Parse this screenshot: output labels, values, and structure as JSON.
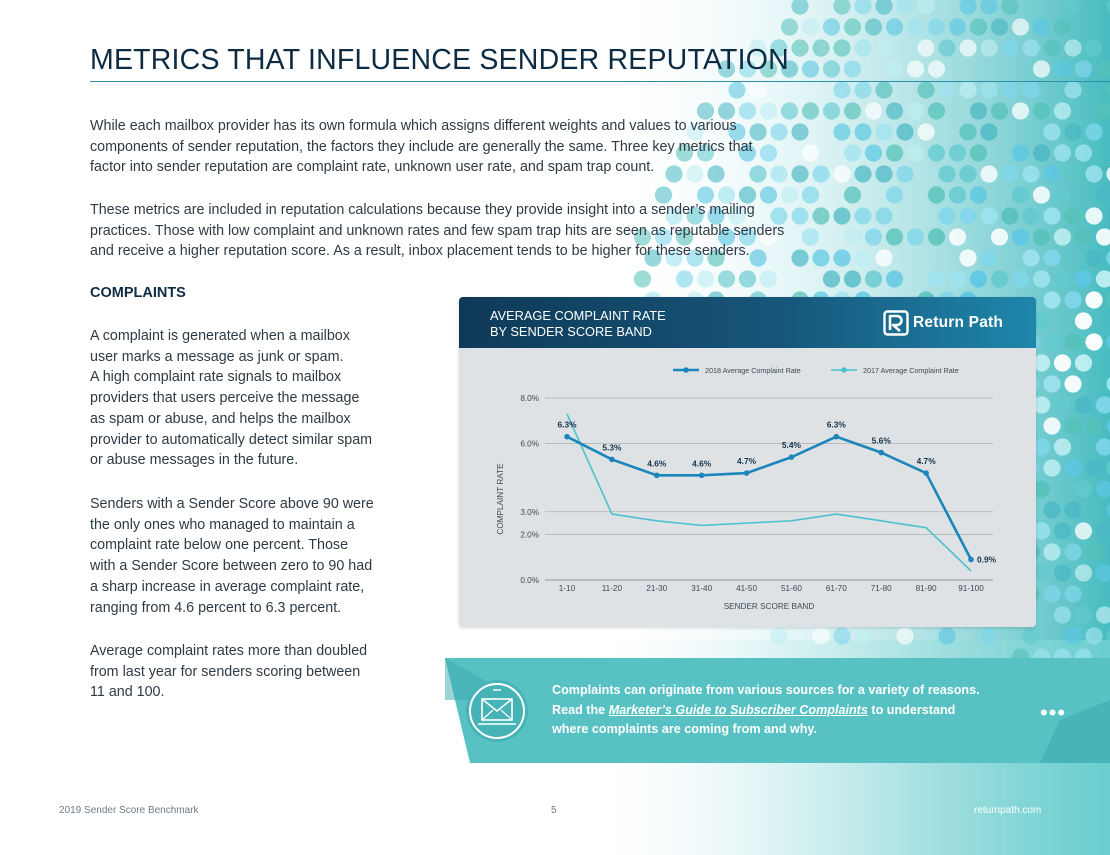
{
  "page": {
    "title": "METRICS THAT INFLUENCE SENDER REPUTATION",
    "intro": [
      [
        "While each mailbox provider has its own formula which assigns different weights and values to various",
        "components of sender reputation, the factors they include are generally the same. Three key metrics that",
        "factor into sender reputation are complaint rate, unknown user rate, and spam trap count."
      ],
      [
        "These metrics are included in reputation calculations because they provide insight into a sender’s mailing",
        "practices. Those with low complaint and unknown rates and few spam trap hits are seen as reputable senders",
        "and receive a higher reputation score. As a result, inbox placement tends to be higher for these senders."
      ]
    ],
    "section_heading": "COMPLAINTS",
    "left_paragraphs": [
      [
        "A complaint is generated when a mailbox",
        "user marks a message as junk or spam.",
        "A high complaint rate signals to mailbox",
        "providers that users perceive the message",
        "as spam or abuse, and helps the mailbox",
        "provider to automatically detect similar spam",
        "or abuse messages in the future."
      ],
      [
        "Senders with a Sender Score above 90 were",
        "the only ones who managed to maintain a",
        "complaint rate below one percent. Those",
        "with a Sender Score between zero to 90 had",
        "a sharp increase in average complaint rate,",
        "ranging from 4.6 percent to 6.3 percent."
      ],
      [
        "Average complaint rates more than doubled",
        "from last year for senders scoring between",
        "11 and 100."
      ]
    ]
  },
  "card": {
    "title_lines": [
      "AVERAGE COMPLAINT RATE",
      "BY SENDER SCORE BAND"
    ],
    "logo_text": "Return Path",
    "logo_icon": "return-path-logo-icon"
  },
  "chart_data": {
    "type": "line",
    "title": "AVERAGE COMPLAINT RATE BY SENDER SCORE BAND",
    "categories": [
      "1-10",
      "11-20",
      "21-30",
      "31-40",
      "41-50",
      "51-60",
      "61-70",
      "71-80",
      "81-90",
      "91-100"
    ],
    "series": [
      {
        "name": "2018 Average Complaint Rate",
        "color": "#1a86bb",
        "values": [
          6.3,
          5.3,
          4.6,
          4.6,
          4.7,
          5.4,
          6.3,
          5.6,
          4.7,
          0.9
        ],
        "labels": [
          "6.3%",
          "5.3%",
          "4.6%",
          "4.6%",
          "4.7%",
          "5.4%",
          "6.3%",
          "5.6%",
          "4.7%",
          "0.9%"
        ]
      },
      {
        "name": "2017 Average Complaint Rate",
        "color": "#4cc1cf",
        "values": [
          7.3,
          2.9,
          2.6,
          2.4,
          2.5,
          2.6,
          2.9,
          2.6,
          2.3,
          0.4
        ],
        "labels": []
      }
    ],
    "y_ticks": [
      0,
      2,
      3,
      6,
      8
    ],
    "y_tick_labels": [
      "0.0%",
      "2.0%",
      "3.0%",
      "6.0%",
      "8.0%"
    ],
    "ylim": [
      0,
      8
    ],
    "xlabel": "SENDER SCORE BAND",
    "ylabel": "COMPLAINT RATE",
    "grid": true,
    "legend": "top-right"
  },
  "banner": {
    "line1": "Complaints can originate from various sources for a variety of reasons.",
    "line2_pre": "Read the ",
    "link_text": "Marketer’s Guide to Subscriber Complaints",
    "line2_post": " to understand",
    "line3": "where complaints are coming from and why.",
    "icon": "email-envelope-icon",
    "more_icon": "more-dots-icon",
    "more_text": "•••"
  },
  "footer": {
    "left": "2019 Sender Score Benchmark",
    "page_number": "5",
    "right": "returnpath.com"
  },
  "colors": {
    "title": "#0d2c44",
    "teal": "#5cc3c6",
    "line_2018": "#1a86bb",
    "line_2017": "#4cc1cf",
    "header_dark": "#0f3a57"
  }
}
